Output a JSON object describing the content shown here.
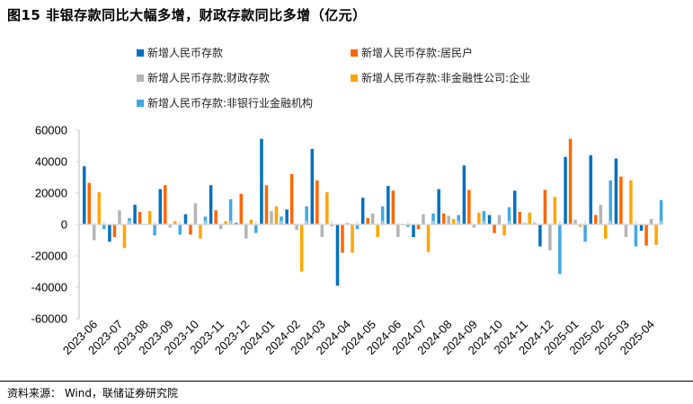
{
  "title": "图15 非银存款同比大幅多增，财政存款同比多增（亿元）",
  "source": "资料来源：  Wind，联储证券研究院",
  "chart_data": {
    "type": "bar",
    "title": "图15 非银存款同比大幅多增，财政存款同比多增（亿元）",
    "xlabel": "",
    "ylabel": "",
    "ylim": [
      -60000,
      60000
    ],
    "yticks": [
      60000,
      40000,
      20000,
      0,
      -20000,
      -40000,
      -60000
    ],
    "grid": false,
    "legend_position": "top",
    "categories": [
      "2023-06",
      "2023-07",
      "2023-08",
      "2023-09",
      "2023-10",
      "2023-11",
      "2023-12",
      "2024-01",
      "2024-02",
      "2024-03",
      "2024-04",
      "2024-05",
      "2024-06",
      "2024-07",
      "2024-08",
      "2024-09",
      "2024-10",
      "2024-11",
      "2024-12",
      "2025-01",
      "2025-02",
      "2025-03",
      "2025-04"
    ],
    "series": [
      {
        "name": "新增人民币存款",
        "color": "#0070C0",
        "values": [
          37000,
          -11000,
          12500,
          22500,
          6500,
          25000,
          1000,
          54500,
          9500,
          48000,
          -39000,
          17000,
          24500,
          -8000,
          22500,
          37500,
          6000,
          21500,
          -14000,
          43000,
          44000,
          42000,
          -4000
        ]
      },
      {
        "name": "新增人民币存款:居民户",
        "color": "#FF6600",
        "values": [
          26500,
          -8000,
          8000,
          25000,
          -6500,
          9000,
          19500,
          25000,
          32000,
          28000,
          -18000,
          4000,
          21500,
          -3000,
          7000,
          22000,
          -5500,
          8000,
          22000,
          54500,
          6000,
          30500,
          -13500
        ]
      },
      {
        "name": "新增人民币存款:财政存款",
        "color": "#B4B4B4",
        "values": [
          -10000,
          9000,
          0,
          -2000,
          13500,
          -3000,
          -9000,
          8500,
          -3500,
          -8000,
          1000,
          7000,
          -8000,
          6500,
          5500,
          -2000,
          6000,
          1000,
          -16500,
          3000,
          12500,
          -8000,
          3500
        ]
      },
      {
        "name": "新增人民币存款:非金融性公司:企业",
        "color": "#FFA500",
        "values": [
          20500,
          -15000,
          8500,
          2000,
          -9000,
          2000,
          3000,
          11500,
          -30000,
          20500,
          -18000,
          -8000,
          0,
          -17500,
          3500,
          7500,
          -7000,
          7500,
          17500,
          -1500,
          -9000,
          28000,
          -13000
        ]
      },
      {
        "name": "新增人民币存款:非银行业金融机构",
        "color": "#41A9E1",
        "values": [
          -3000,
          4000,
          -7000,
          -6500,
          5000,
          16000,
          -5500,
          5000,
          11500,
          -1000,
          -3000,
          11500,
          -1500,
          7000,
          6000,
          8500,
          11000,
          1000,
          -31500,
          -11000,
          28000,
          -14000,
          15500
        ]
      }
    ]
  },
  "legend": {
    "items": [
      {
        "label": "新增人民币存款",
        "color": "#0070C0"
      },
      {
        "label": "新增人民币存款:居民户",
        "color": "#FF6600"
      },
      {
        "label": "新增人民币存款:财政存款",
        "color": "#B4B4B4"
      },
      {
        "label": "新增人民币存款:非金融性公司:企业",
        "color": "#FFA500"
      },
      {
        "label": "新增人民币存款:非银行业金融机构",
        "color": "#41A9E1"
      }
    ]
  }
}
